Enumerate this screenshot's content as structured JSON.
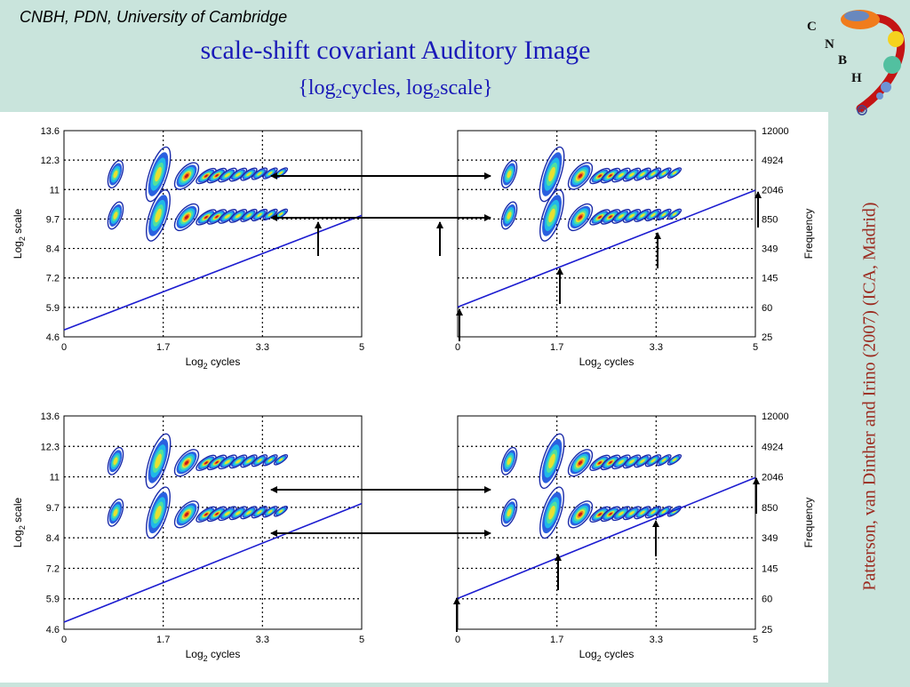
{
  "header": {
    "institution": "CNBH, PDN, University of Cambridge",
    "title": "scale-shift covariant Auditory Image",
    "subtitle_brace_open": "{log",
    "subtitle_sub1": "2",
    "subtitle_mid": "cycles, log",
    "subtitle_sub2": "2",
    "subtitle_end": "scale}"
  },
  "logo": {
    "letters": [
      "C",
      "N",
      "B",
      "H"
    ]
  },
  "citation": "Patterson, van Dinther and Irino (2007) (ICA, Madrid)",
  "colors": {
    "title": "#1a1ab8",
    "citation": "#9b2a1f",
    "background": "#c9e4dc",
    "line": "#1c1cd0"
  },
  "chart_data": [
    {
      "type": "line",
      "panel": "top-left",
      "xlabel": "Log2 cycles",
      "ylabel": "Log2 scale",
      "xlim": [
        0,
        5
      ],
      "ylim": [
        4.6,
        13.6
      ],
      "x_ticks": [
        "0",
        "1.7",
        "3.3",
        "5"
      ],
      "y_ticks": [
        "4.6",
        "5.9",
        "7.2",
        "8.4",
        "9.7",
        "11",
        "12.3",
        "13.6"
      ],
      "grid": true,
      "series": [
        {
          "x": [
            0,
            5
          ],
          "y": [
            4.9,
            9.9
          ]
        }
      ]
    },
    {
      "type": "line",
      "panel": "top-right",
      "xlabel": "Log2 cycles",
      "right_ylabel": "Frequency",
      "xlim": [
        0,
        5
      ],
      "ylim": [
        4.6,
        13.6
      ],
      "x_ticks": [
        "0",
        "1.7",
        "3.3",
        "5"
      ],
      "right_y_ticks": [
        "25",
        "60",
        "145",
        "349",
        "850",
        "2046",
        "4924",
        "12000"
      ],
      "grid": true,
      "series": [
        {
          "x": [
            0,
            5
          ],
          "y": [
            5.9,
            11.0
          ]
        }
      ]
    },
    {
      "type": "line",
      "panel": "bottom-left",
      "xlabel": "Log2 cycles",
      "ylabel": "Log2 scale",
      "xlim": [
        0,
        5
      ],
      "ylim": [
        4.6,
        13.6
      ],
      "x_ticks": [
        "0",
        "1.7",
        "3.3",
        "5"
      ],
      "y_ticks": [
        "4.6",
        "5.9",
        "7.2",
        "8.4",
        "9.7",
        "11",
        "12.3",
        "13.6"
      ],
      "grid": true,
      "series": [
        {
          "x": [
            0,
            5
          ],
          "y": [
            4.9,
            9.9
          ]
        }
      ]
    },
    {
      "type": "line",
      "panel": "bottom-right",
      "xlabel": "Log2 cycles",
      "right_ylabel": "Frequency",
      "xlim": [
        0,
        5
      ],
      "ylim": [
        4.6,
        13.6
      ],
      "x_ticks": [
        "0",
        "1.7",
        "3.3",
        "5"
      ],
      "right_y_ticks": [
        "25",
        "60",
        "145",
        "349",
        "850",
        "2046",
        "4924",
        "12000"
      ],
      "grid": true,
      "series": [
        {
          "x": [
            0,
            5
          ],
          "y": [
            5.9,
            11.0
          ]
        }
      ]
    }
  ]
}
